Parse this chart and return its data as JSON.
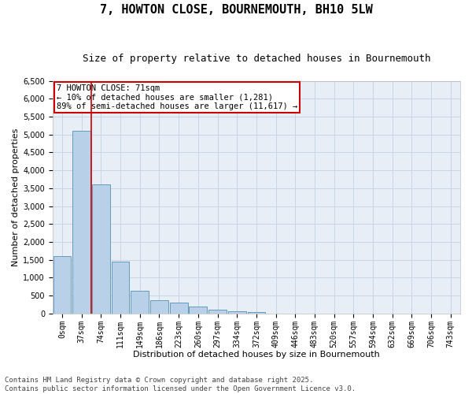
{
  "title": "7, HOWTON CLOSE, BOURNEMOUTH, BH10 5LW",
  "subtitle": "Size of property relative to detached houses in Bournemouth",
  "xlabel": "Distribution of detached houses by size in Bournemouth",
  "ylabel": "Number of detached properties",
  "categories": [
    "0sqm",
    "37sqm",
    "74sqm",
    "111sqm",
    "149sqm",
    "186sqm",
    "223sqm",
    "260sqm",
    "297sqm",
    "334sqm",
    "372sqm",
    "409sqm",
    "446sqm",
    "483sqm",
    "520sqm",
    "557sqm",
    "594sqm",
    "632sqm",
    "669sqm",
    "706sqm",
    "743sqm"
  ],
  "bar_heights": [
    1600,
    5100,
    3600,
    1450,
    630,
    380,
    300,
    200,
    110,
    75,
    50,
    0,
    0,
    0,
    0,
    0,
    0,
    0,
    0,
    0,
    0
  ],
  "bar_color": "#b8d0e8",
  "bar_edge_color": "#6699bb",
  "vline_x": 1.5,
  "annotation_text": "7 HOWTON CLOSE: 71sqm\n← 10% of detached houses are smaller (1,281)\n89% of semi-detached houses are larger (11,617) →",
  "annotation_box_facecolor": "#ffffff",
  "annotation_box_edgecolor": "#cc0000",
  "vline_color": "#cc0000",
  "ylim": [
    0,
    6500
  ],
  "ytick_step": 500,
  "grid_color": "#c8d4e8",
  "bg_color": "#e8eef6",
  "footer_line1": "Contains HM Land Registry data © Crown copyright and database right 2025.",
  "footer_line2": "Contains public sector information licensed under the Open Government Licence v3.0.",
  "title_fontsize": 11,
  "subtitle_fontsize": 9,
  "axis_label_fontsize": 8,
  "tick_fontsize": 7,
  "annotation_fontsize": 7.5,
  "footer_fontsize": 6.5
}
